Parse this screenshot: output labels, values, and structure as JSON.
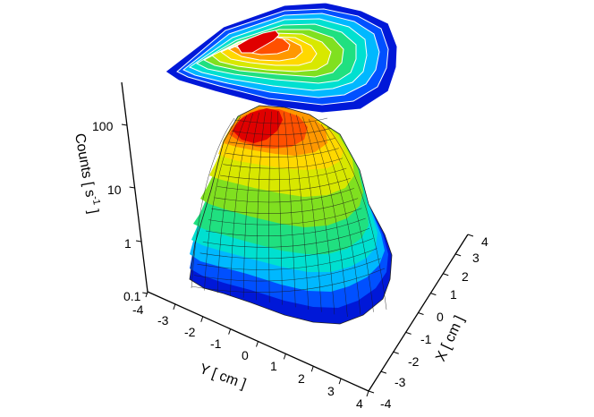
{
  "chart_data": {
    "type": "surface",
    "z_scale": "log",
    "z_ticks": [
      "100",
      "10",
      "1",
      "0.1"
    ],
    "y_ticks": [
      "-4",
      "-3",
      "-2",
      "-1",
      "0",
      "1",
      "2",
      "3",
      "4"
    ],
    "x_ticks": [
      "-4",
      "-3",
      "-2",
      "-1",
      "0",
      "1",
      "2",
      "3",
      "4"
    ],
    "z_label_main": "Counts [ s",
    "z_label_sup": "-1",
    "z_label_end": " ]",
    "y_label": "Y [ cm ]",
    "x_label": "X [ cm ]",
    "x_range": [
      -4,
      4
    ],
    "y_range": [
      -4,
      4
    ],
    "z_range": [
      0.1,
      200
    ],
    "peak": {
      "x": -1.2,
      "y": -0.2,
      "z": 150
    },
    "projected_contour_map": true,
    "colormap": [
      "#0018d8",
      "#0050ff",
      "#00b8ff",
      "#00e0d0",
      "#20e080",
      "#80e020",
      "#d8e800",
      "#ffd800",
      "#ff9800",
      "#ff5000",
      "#e00000"
    ]
  }
}
